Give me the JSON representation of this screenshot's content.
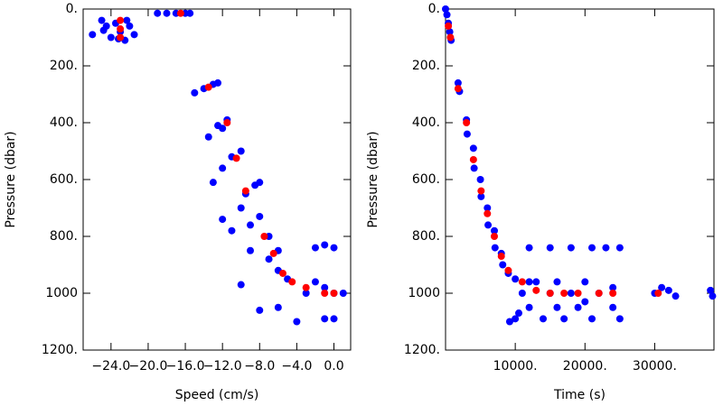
{
  "chart_data": [
    {
      "type": "scatter",
      "x_label": "Speed (cm/s)",
      "y_label": "Pressure (dbar)",
      "xlim": [
        -27,
        1.8
      ],
      "ylim": [
        0,
        1200
      ],
      "y_inverted": true,
      "xticks": [
        {
          "value": -24,
          "label": "−24.0"
        },
        {
          "value": -20,
          "label": "−20.0"
        },
        {
          "value": -16,
          "label": "−16.0"
        },
        {
          "value": -12,
          "label": "−12.0"
        },
        {
          "value": -8,
          "label": "−8.0"
        },
        {
          "value": -4,
          "label": "−4.0"
        },
        {
          "value": 0,
          "label": "0.0"
        }
      ],
      "yticks": [
        {
          "value": 0,
          "label": "0."
        },
        {
          "value": 200,
          "label": "200."
        },
        {
          "value": 400,
          "label": "400."
        },
        {
          "value": 600,
          "label": "600."
        },
        {
          "value": 800,
          "label": "800."
        },
        {
          "value": 1000,
          "label": "1000"
        },
        {
          "value": 1200,
          "label": "1200."
        }
      ],
      "series": [
        {
          "color": "#0000ff",
          "x": [
            -26,
            -25,
            -24.5,
            -24,
            -23.5,
            -23,
            -22.5,
            -22,
            -21.5,
            -24.8,
            -23.2,
            -22.3,
            -19,
            -18,
            -17,
            -16,
            -15.5,
            -15,
            -14,
            -13,
            -12.5,
            -13.5,
            -12.5,
            -11.5,
            -12,
            -13,
            -12,
            -11,
            -10,
            -12,
            -10,
            -9.5,
            -8.5,
            -8,
            -11,
            -9,
            -8,
            -7,
            -6,
            -10,
            -9,
            -7,
            -6,
            -5,
            -8,
            -6,
            -4,
            -3,
            -2,
            -1,
            0,
            1,
            -1,
            0,
            -2,
            -1,
            0
          ],
          "values": [
            90,
            40,
            60,
            100,
            50,
            80,
            110,
            60,
            90,
            75,
            105,
            40,
            15,
            15,
            15,
            15,
            15,
            295,
            280,
            265,
            260,
            450,
            410,
            390,
            420,
            610,
            560,
            520,
            500,
            740,
            700,
            650,
            620,
            610,
            780,
            760,
            730,
            800,
            850,
            970,
            850,
            880,
            920,
            950,
            1060,
            1050,
            1100,
            1000,
            960,
            980,
            1000,
            1000,
            1090,
            1090,
            840,
            830,
            840
          ]
        },
        {
          "color": "#ff0000",
          "x": [
            -23,
            -23,
            -23,
            -16.5,
            -13.5,
            -11.5,
            -10.5,
            -9.5,
            -7.5,
            -6.5,
            -5.5,
            -4.5,
            -3,
            -1,
            0
          ],
          "values": [
            40,
            70,
            100,
            15,
            275,
            400,
            525,
            640,
            800,
            860,
            930,
            960,
            980,
            1000,
            1000
          ]
        }
      ]
    },
    {
      "type": "scatter",
      "x_label": "Time (s)",
      "y_label": "Pressure (dbar)",
      "xlim": [
        0,
        38500
      ],
      "ylim": [
        0,
        1200
      ],
      "y_inverted": true,
      "xticks": [
        {
          "value": 10000,
          "label": "10000."
        },
        {
          "value": 20000,
          "label": "20000."
        },
        {
          "value": 30000,
          "label": "30000."
        }
      ],
      "yticks": [
        {
          "value": 0,
          "label": "0."
        },
        {
          "value": 200,
          "label": "200."
        },
        {
          "value": 400,
          "label": "400."
        },
        {
          "value": 600,
          "label": "600."
        },
        {
          "value": 800,
          "label": "800."
        },
        {
          "value": 1000,
          "label": "1000"
        },
        {
          "value": 1200,
          "label": "1200."
        }
      ],
      "series": [
        {
          "color": "#0000ff",
          "x": [
            0,
            200,
            400,
            600,
            800,
            1800,
            2000,
            3000,
            3100,
            4000,
            4100,
            5000,
            5100,
            6000,
            6100,
            7000,
            7100,
            8000,
            8200,
            9000,
            9200,
            10000,
            10500,
            11000,
            12000,
            13000,
            14000,
            15000,
            16000,
            17000,
            18000,
            19000,
            20000,
            21000,
            22000,
            23000,
            24000,
            25000,
            25000,
            12000,
            15000,
            18000,
            21000,
            30000,
            31000,
            32000,
            33000,
            38000,
            38300,
            10000,
            12000,
            16000,
            20000,
            24000
          ],
          "values": [
            0,
            20,
            50,
            80,
            110,
            260,
            290,
            390,
            440,
            490,
            560,
            600,
            660,
            700,
            760,
            780,
            840,
            860,
            900,
            930,
            1100,
            950,
            1070,
            1000,
            1050,
            960,
            1090,
            1000,
            960,
            1090,
            1000,
            1050,
            960,
            1090,
            1000,
            840,
            980,
            1090,
            840,
            840,
            840,
            840,
            840,
            1000,
            980,
            990,
            1010,
            990,
            1010,
            1090,
            960,
            1050,
            1030,
            1050
          ]
        },
        {
          "color": "#ff0000",
          "x": [
            400,
            700,
            1800,
            3000,
            4000,
            5100,
            6000,
            7000,
            8000,
            9000,
            11000,
            13000,
            15000,
            17000,
            19000,
            22000,
            24000,
            30500
          ],
          "values": [
            60,
            100,
            280,
            400,
            530,
            640,
            720,
            800,
            870,
            920,
            960,
            990,
            1000,
            1000,
            1000,
            1000,
            1000,
            1000
          ]
        }
      ]
    }
  ]
}
